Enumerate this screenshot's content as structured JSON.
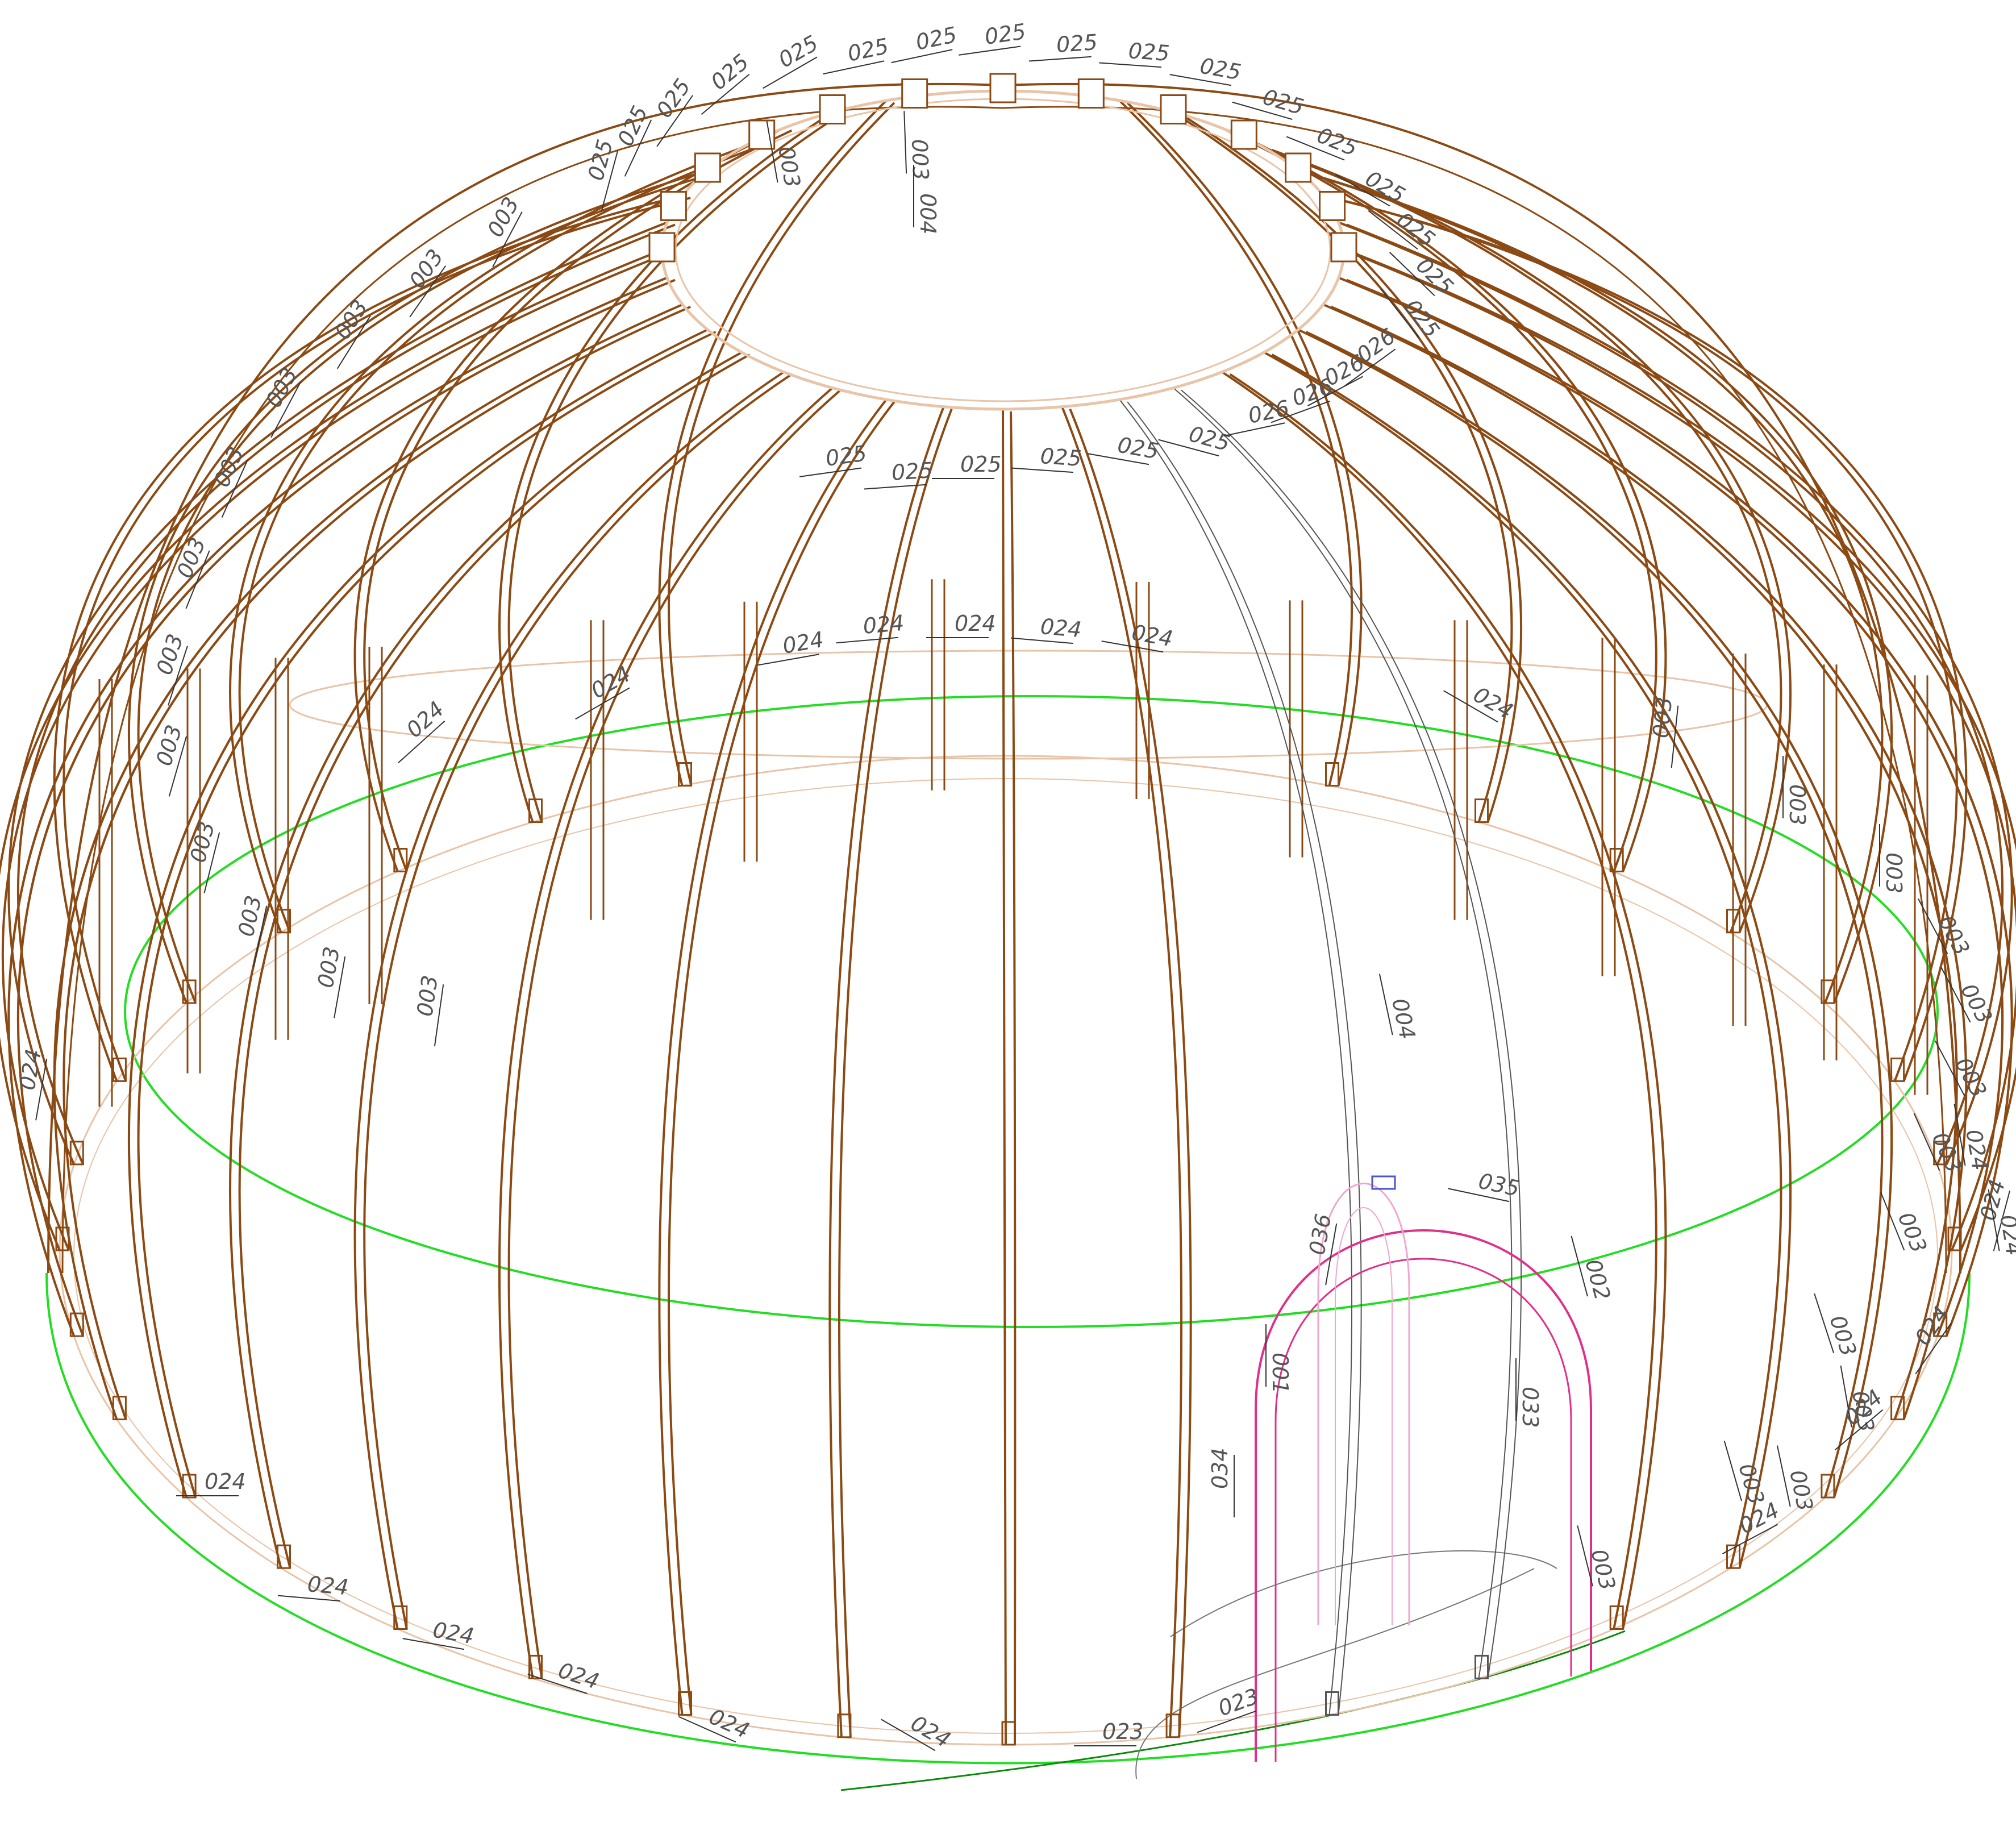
{
  "colors": {
    "rib": "#8b4a14",
    "rib_light": "#e8c4a8",
    "ground": "#22dd22",
    "ground_dark": "#0a8a0a",
    "steel": "#555555",
    "door": "#e0308a",
    "door_light": "#f2a6cf",
    "leader": "#333333",
    "label": "#555555",
    "plate": "#4a55cc"
  },
  "part_codes": {
    "ring_block": "025",
    "ring_block_alt": "026",
    "rib": "003",
    "rib_short": "004",
    "base_post": "024",
    "base_post_corner": "023",
    "steel_rib_a": "001",
    "steel_rib_b": "002",
    "door_frame": "033",
    "door_side": "034",
    "door_arch": "035",
    "door_post": "036"
  },
  "callouts": [
    {
      "text": "025",
      "rot": -12
    },
    {
      "text": "025",
      "rot": -12
    },
    {
      "text": "025",
      "rot": -8
    },
    {
      "text": "025",
      "rot": -4
    },
    {
      "text": "025",
      "rot": 4
    },
    {
      "text": "025",
      "rot": 10
    },
    {
      "text": "025",
      "rot": 16
    },
    {
      "text": "025",
      "rot": 22
    },
    {
      "text": "025",
      "rot": 30
    },
    {
      "text": "025",
      "rot": 38
    },
    {
      "text": "025",
      "rot": 44
    },
    {
      "text": "025",
      "rot": 52
    },
    {
      "text": "025",
      "rot": -30
    },
    {
      "text": "025",
      "rot": -40
    },
    {
      "text": "025",
      "rot": -55
    },
    {
      "text": "025",
      "rot": -65
    },
    {
      "text": "025",
      "rot": -75
    },
    {
      "text": "003",
      "rot": 88
    },
    {
      "text": "003",
      "rot": 80
    },
    {
      "text": "003",
      "rot": -62
    },
    {
      "text": "003",
      "rot": -55
    },
    {
      "text": "003",
      "rot": -58
    },
    {
      "text": "003",
      "rot": -62
    },
    {
      "text": "003",
      "rot": -66
    },
    {
      "text": "003",
      "rot": -68
    },
    {
      "text": "003",
      "rot": -72
    },
    {
      "text": "003",
      "rot": -74
    },
    {
      "text": "003",
      "rot": -76
    },
    {
      "text": "003",
      "rot": -78
    },
    {
      "text": "003",
      "rot": -80
    },
    {
      "text": "003",
      "rot": -82
    },
    {
      "text": "003",
      "rot": -84
    },
    {
      "text": "003",
      "rot": 90
    },
    {
      "text": "003",
      "rot": 90
    },
    {
      "text": "003",
      "rot": 62
    },
    {
      "text": "003",
      "rot": 62
    },
    {
      "text": "003",
      "rot": 62
    },
    {
      "text": "003",
      "rot": 66
    },
    {
      "text": "003",
      "rot": 68
    },
    {
      "text": "003",
      "rot": 72
    },
    {
      "text": "003",
      "rot": 74
    },
    {
      "text": "003",
      "rot": 76
    },
    {
      "text": "003",
      "rot": 78
    },
    {
      "text": "003",
      "rot": 80
    },
    {
      "text": "004",
      "rot": 90
    },
    {
      "text": "004",
      "rot": 78
    },
    {
      "text": "025",
      "rot": -8
    },
    {
      "text": "025",
      "rot": -4
    },
    {
      "text": "025",
      "rot": 0
    },
    {
      "text": "025",
      "rot": 4
    },
    {
      "text": "025",
      "rot": 10
    },
    {
      "text": "025",
      "rot": 15
    },
    {
      "text": "026",
      "rot": -12
    },
    {
      "text": "026",
      "rot": -20
    },
    {
      "text": "026",
      "rot": -28
    },
    {
      "text": "026",
      "rot": -36
    },
    {
      "text": "024",
      "rot": -10
    },
    {
      "text": "024",
      "rot": -5
    },
    {
      "text": "024",
      "rot": 0
    },
    {
      "text": "024",
      "rot": 5
    },
    {
      "text": "024",
      "rot": 10
    },
    {
      "text": "024",
      "rot": -30
    },
    {
      "text": "024",
      "rot": -42
    },
    {
      "text": "024",
      "rot": 30
    },
    {
      "text": "024",
      "rot": -80
    },
    {
      "text": "024",
      "rot": 80
    },
    {
      "text": "024",
      "rot": -75
    },
    {
      "text": "024",
      "rot": -55
    },
    {
      "text": "024",
      "rot": -40
    },
    {
      "text": "024",
      "rot": -28
    },
    {
      "text": "023",
      "rot": -20
    },
    {
      "text": "024",
      "rot": 30
    },
    {
      "text": "024",
      "rot": 24
    },
    {
      "text": "024",
      "rot": 18
    },
    {
      "text": "024",
      "rot": 10
    },
    {
      "text": "024",
      "rot": 5
    },
    {
      "text": "024",
      "rot": 0
    },
    {
      "text": "023",
      "rot": 0
    },
    {
      "text": "024",
      "rot": 80
    },
    {
      "text": "001",
      "rot": 90
    },
    {
      "text": "002",
      "rot": 75
    },
    {
      "text": "033",
      "rot": 90
    },
    {
      "text": "034",
      "rot": -90
    },
    {
      "text": "035",
      "rot": 12
    },
    {
      "text": "036",
      "rot": -80
    }
  ]
}
